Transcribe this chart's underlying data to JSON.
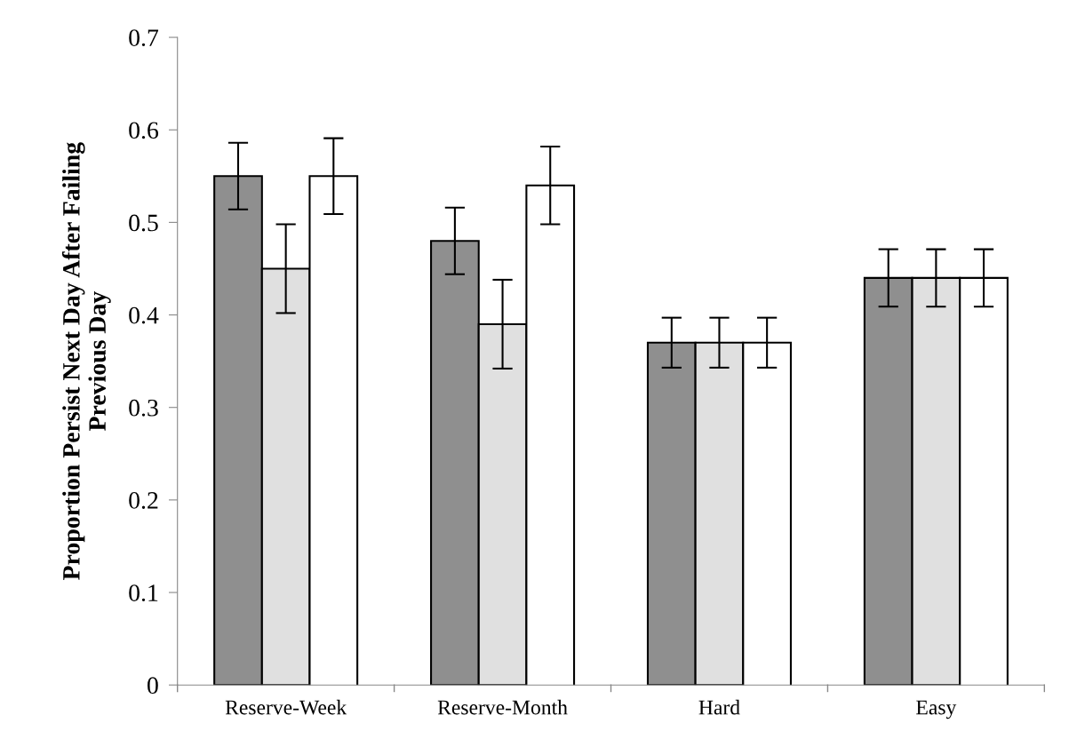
{
  "chart_data": {
    "type": "bar",
    "ylabel": "Proportion Persist Next Day After Failing\nPrevious Day",
    "categories": [
      "Reserve-Week",
      "Reserve-Month",
      "Hard",
      "Easy"
    ],
    "series": [
      {
        "color": "#8f8f8f",
        "values": [
          0.55,
          0.48,
          0.37,
          0.44
        ],
        "errors": [
          0.036,
          0.036,
          0.027,
          0.031
        ]
      },
      {
        "color": "#e0e0e0",
        "values": [
          0.45,
          0.39,
          0.37,
          0.44
        ],
        "errors": [
          0.048,
          0.048,
          0.027,
          0.031
        ]
      },
      {
        "color": "#ffffff",
        "values": [
          0.55,
          0.54,
          0.37,
          0.44
        ],
        "errors": [
          0.041,
          0.042,
          0.027,
          0.031
        ]
      }
    ],
    "ylim": [
      0,
      0.7
    ],
    "yticks": [
      {
        "value": 0,
        "label": "0"
      },
      0.1,
      0.2,
      0.3,
      0.4,
      0.5,
      0.6,
      0.7
    ],
    "grid": false,
    "legend": false
  }
}
